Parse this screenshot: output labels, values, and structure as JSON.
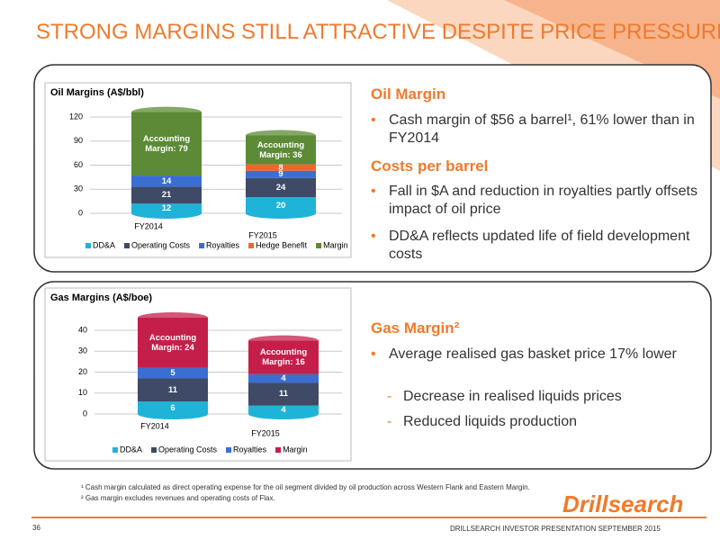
{
  "title": "STRONG MARGINS STILL ATTRACTIVE DESPITE PRICE PRESSURES",
  "chart_data": [
    {
      "type": "bar",
      "stacked": true,
      "title": "Oil Margins (A$/bbl)",
      "categories": [
        "FY2014",
        "FY2015"
      ],
      "series": [
        {
          "name": "DD&A",
          "color": "#1fb3d8",
          "values": [
            12,
            20
          ]
        },
        {
          "name": "Operating Costs",
          "color": "#3e4a66",
          "values": [
            21,
            24
          ]
        },
        {
          "name": "Royalties",
          "color": "#3b6ed0",
          "values": [
            14,
            9
          ]
        },
        {
          "name": "Hedge Benefit",
          "color": "#f0662c",
          "values": [
            null,
            8
          ]
        },
        {
          "name": "Margin",
          "color": "#5c8a36",
          "values": [
            79,
            36
          ],
          "value_labels": [
            "Accounting Margin: 79",
            "Accounting Margin: 36"
          ]
        }
      ],
      "ylim": [
        0,
        135
      ],
      "yticks": [
        0,
        30,
        60,
        90,
        120
      ],
      "grid": true,
      "legend": "bottom"
    },
    {
      "type": "bar",
      "stacked": true,
      "title": "Gas Margins (A$/boe)",
      "categories": [
        "FY2014",
        "FY2015"
      ],
      "series": [
        {
          "name": "DD&A",
          "color": "#1fb3d8",
          "values": [
            6,
            4
          ]
        },
        {
          "name": "Operating Costs",
          "color": "#3e4a66",
          "values": [
            11,
            11
          ]
        },
        {
          "name": "Royalties",
          "color": "#3b6ed0",
          "values": [
            5,
            4
          ]
        },
        {
          "name": "Margin",
          "color": "#c41f4a",
          "values": [
            24,
            16
          ],
          "value_labels": [
            "Accounting Margin: 24",
            "Accounting Margin: 16"
          ]
        }
      ],
      "ylim": [
        0,
        48
      ],
      "yticks": [
        0,
        10,
        20,
        30,
        40
      ],
      "grid": true,
      "legend": "bottom"
    }
  ],
  "oil_panel": {
    "heading1": "Oil Margin",
    "bullet1": "Cash margin of $56 a barrel¹, 61% lower than in FY2014",
    "heading2": "Costs per barrel",
    "bullet2": "Fall in $A and reduction in royalties partly offsets impact of oil price",
    "bullet3": "DD&A reflects updated life of field development costs"
  },
  "gas_panel": {
    "heading": "Gas Margin²",
    "bullet": "Average realised gas basket price 17% lower",
    "sub1": "Decrease in realised liquids prices",
    "sub2": "Reduced liquids production"
  },
  "footnotes": [
    "¹ Cash margin calculated as direct operating expense for the oil segment divided by oil production across Western Flank and Eastern Margin.",
    "² Gas margin excludes revenues and operating costs of Flax."
  ],
  "page_number": "36",
  "logo": "Drillsearch",
  "footer": "DRILLSEARCH INVESTOR PRESENTATION SEPTEMBER 2015"
}
